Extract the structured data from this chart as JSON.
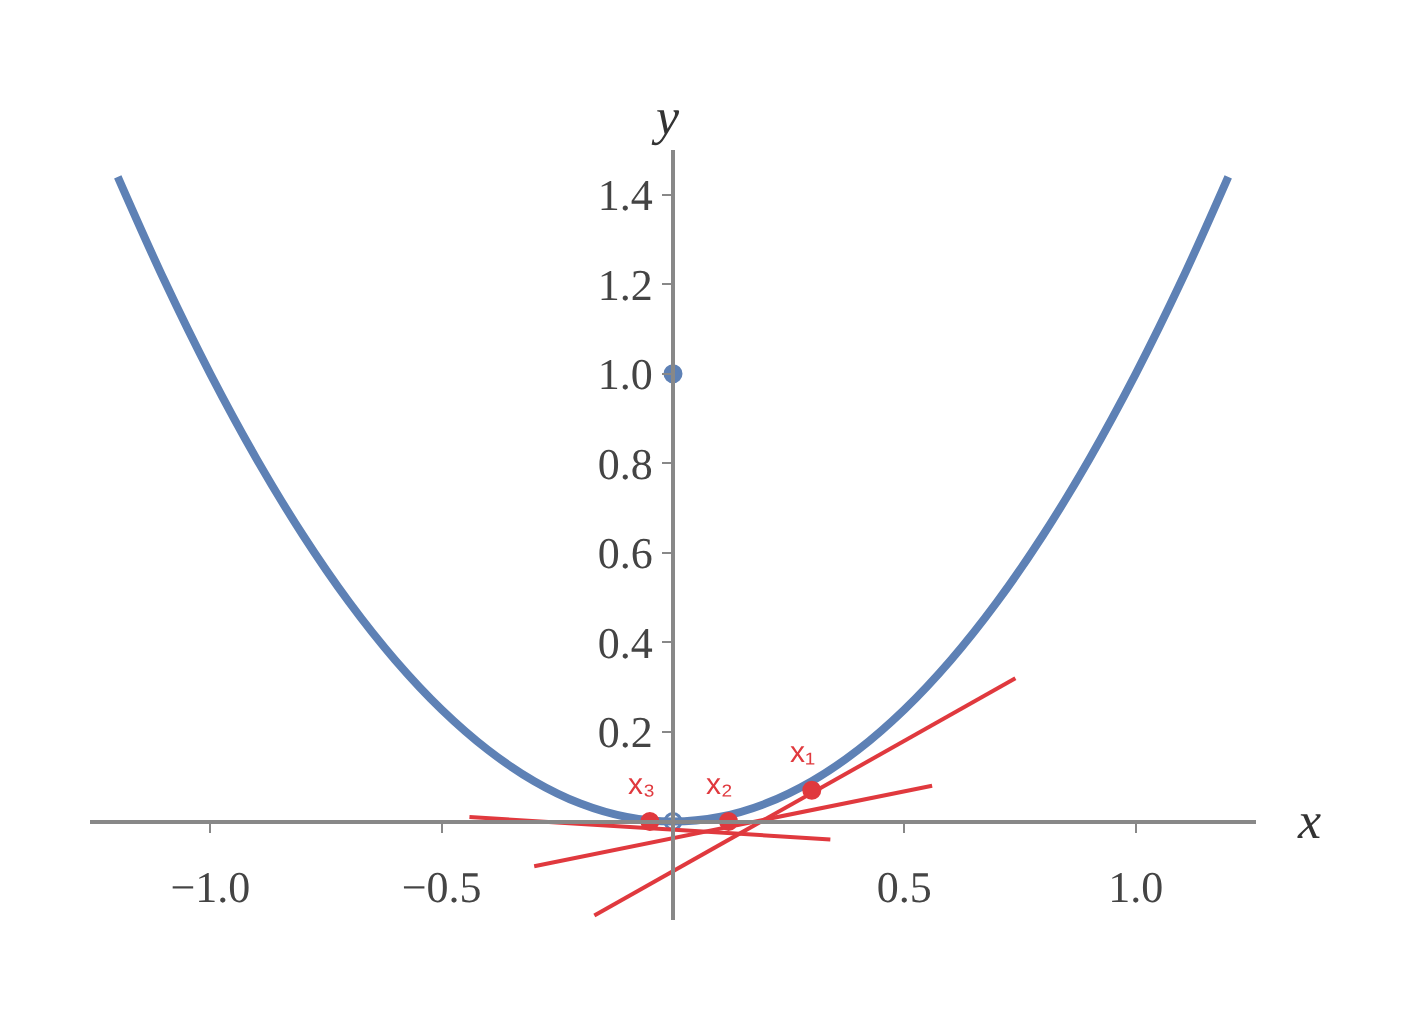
{
  "chart_data": {
    "type": "line",
    "xlabel": "x",
    "ylabel": "y",
    "xlim": [
      -1.26,
      1.26
    ],
    "ylim": [
      -0.22,
      1.5
    ],
    "xticks": [
      {
        "value": -1,
        "label": "−1.0"
      },
      {
        "value": -0.5,
        "label": "−0.5"
      },
      0.5,
      {
        "value": 1,
        "label": "1.0"
      }
    ],
    "yticks": [
      0.2,
      0.4,
      0.6,
      0.8,
      {
        "value": 1,
        "label": "1.0"
      },
      1.2,
      1.4
    ],
    "grid": false,
    "marker": "none",
    "line_style": "solid",
    "series": [
      {
        "color": "#5e81b5",
        "x": [
          -1.2,
          -1.1,
          -1,
          -0.9,
          -0.8,
          -0.7,
          -0.6,
          -0.5,
          -0.4,
          -0.3,
          -0.2,
          -0.1,
          0,
          0.1,
          0.2,
          0.3,
          0.4,
          0.5,
          0.6,
          0.7,
          0.8,
          0.9,
          1,
          1.1,
          1.2
        ],
        "values": [
          1.44,
          1.21,
          1,
          0.81,
          0.64,
          0.49,
          0.36,
          0.25,
          0.16,
          0.09,
          0.04,
          0.01,
          0,
          0.01,
          0.04,
          0.09,
          0.16,
          0.25,
          0.36,
          0.49,
          0.64,
          0.81,
          1,
          1.21,
          1.44
        ]
      },
      {
        "type": "scatter",
        "color": "#5e81b5",
        "marker": "circle",
        "x": [
          0
        ],
        "values": [
          1
        ]
      },
      {
        "type": "scatter",
        "color": "#5e81b5",
        "marker": "circle-open",
        "x": [
          0
        ],
        "values": [
          0
        ]
      },
      {
        "type": "line",
        "color": "#e0393e",
        "x": [
          -0.17,
          0.74
        ],
        "values": [
          -0.21,
          0.32
        ]
      },
      {
        "type": "line",
        "color": "#e0393e",
        "x": [
          -0.3,
          0.56
        ],
        "values": [
          -0.1,
          0.08
        ]
      },
      {
        "type": "line",
        "color": "#e0393e",
        "x": [
          -0.44,
          0.34
        ],
        "values": [
          0.01,
          -0.04
        ]
      },
      {
        "type": "scatter",
        "color": "#e0393e",
        "marker": "circle",
        "x": [
          0.3,
          0.12,
          -0.05
        ],
        "values": [
          0.07,
          0,
          0
        ]
      }
    ],
    "annotations": [
      {
        "text": "x₁",
        "x": 0.3,
        "y": 0.07
      },
      {
        "text": "x₂",
        "x": 0.12,
        "y": 0
      },
      {
        "text": "x₃",
        "x": -0.05,
        "y": 0
      }
    ]
  }
}
